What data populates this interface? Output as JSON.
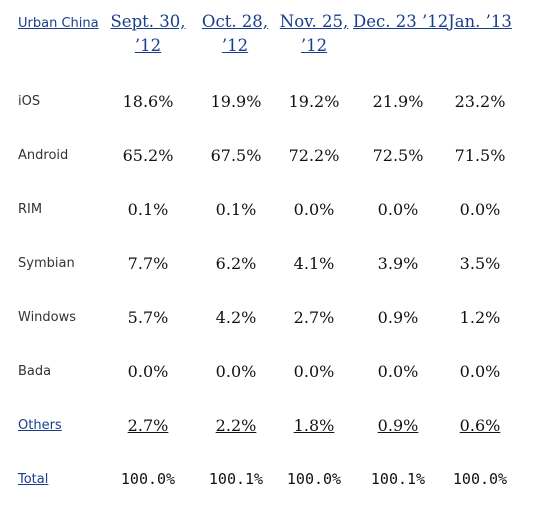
{
  "table": {
    "corner_label": "Urban China",
    "columns": [
      "Sept. 30, ’12",
      "Oct. 28, ’12",
      "Nov. 25, ’12",
      "Dec. 23 ’12",
      "Jan. ’13"
    ],
    "rows": [
      {
        "label": "iOS",
        "values": [
          "18.6%",
          "19.9%",
          "19.2%",
          "21.9%",
          "23.2%"
        ]
      },
      {
        "label": "Android",
        "values": [
          "65.2%",
          "67.5%",
          "72.2%",
          "72.5%",
          "71.5%"
        ]
      },
      {
        "label": "RIM",
        "values": [
          "0.1%",
          "0.1%",
          "0.0%",
          "0.0%",
          "0.0%"
        ]
      },
      {
        "label": "Symbian",
        "values": [
          "7.7%",
          "6.2%",
          "4.1%",
          "3.9%",
          "3.5%"
        ]
      },
      {
        "label": "Windows",
        "values": [
          "5.7%",
          "4.2%",
          "2.7%",
          "0.9%",
          "1.2%"
        ]
      },
      {
        "label": "Bada",
        "values": [
          "0.0%",
          "0.0%",
          "0.0%",
          "0.0%",
          "0.0%"
        ]
      },
      {
        "label": "Others",
        "values": [
          "2.7%",
          "2.2%",
          "1.8%",
          "0.9%",
          "0.6%"
        ]
      },
      {
        "label": "Total",
        "values": [
          "100.0%",
          "100.1%",
          "100.0%",
          "100.1%",
          "100.0%"
        ]
      }
    ]
  }
}
